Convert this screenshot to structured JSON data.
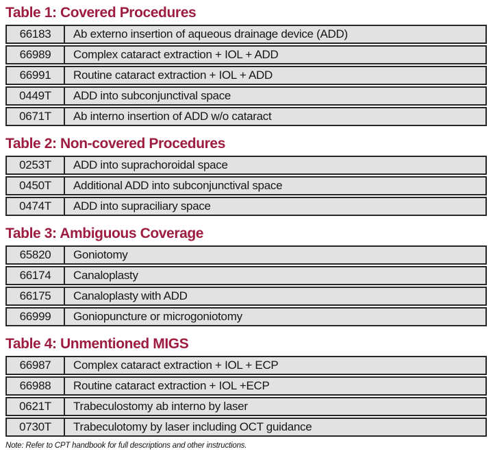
{
  "colors": {
    "title": "#9d1c3f",
    "row_bg": "#e2e2e2",
    "border": "#262626",
    "text": "#161616",
    "page_bg": "#ffffff"
  },
  "tables": [
    {
      "title": "Table 1: Covered Procedures",
      "rows": [
        {
          "code": "66183",
          "description": "Ab externo insertion of aqueous drainage device (ADD)"
        },
        {
          "code": "66989",
          "description": "Complex cataract extraction + IOL + ADD"
        },
        {
          "code": "66991",
          "description": "Routine cataract extraction + IOL + ADD"
        },
        {
          "code": "0449T",
          "description": "ADD into subconjunctival space"
        },
        {
          "code": "0671T",
          "description": "Ab interno insertion of ADD w/o cataract"
        }
      ]
    },
    {
      "title": "Table 2: Non-covered Procedures",
      "rows": [
        {
          "code": "0253T",
          "description": "ADD into suprachoroidal space"
        },
        {
          "code": "0450T",
          "description": "Additional ADD into subconjunctival space"
        },
        {
          "code": "0474T",
          "description": "ADD into supraciliary space"
        }
      ]
    },
    {
      "title": "Table 3: Ambiguous Coverage",
      "rows": [
        {
          "code": "65820",
          "description": "Goniotomy"
        },
        {
          "code": "66174",
          "description": "Canaloplasty"
        },
        {
          "code": "66175",
          "description": "Canaloplasty with ADD"
        },
        {
          "code": "66999",
          "description": "Goniopuncture or microgoniotomy"
        }
      ]
    },
    {
      "title": "Table 4: Unmentioned MIGS",
      "rows": [
        {
          "code": "66987",
          "description": "Complex cataract extraction + IOL + ECP"
        },
        {
          "code": "66988",
          "description": "Routine cataract extraction + IOL +ECP"
        },
        {
          "code": "0621T",
          "description": "Trabeculostomy ab interno by laser"
        },
        {
          "code": "0730T",
          "description": "Trabeculotomy by laser including OCT guidance"
        }
      ]
    }
  ],
  "footnote": "Note: Refer to CPT handbook for full descriptions and other instructions."
}
